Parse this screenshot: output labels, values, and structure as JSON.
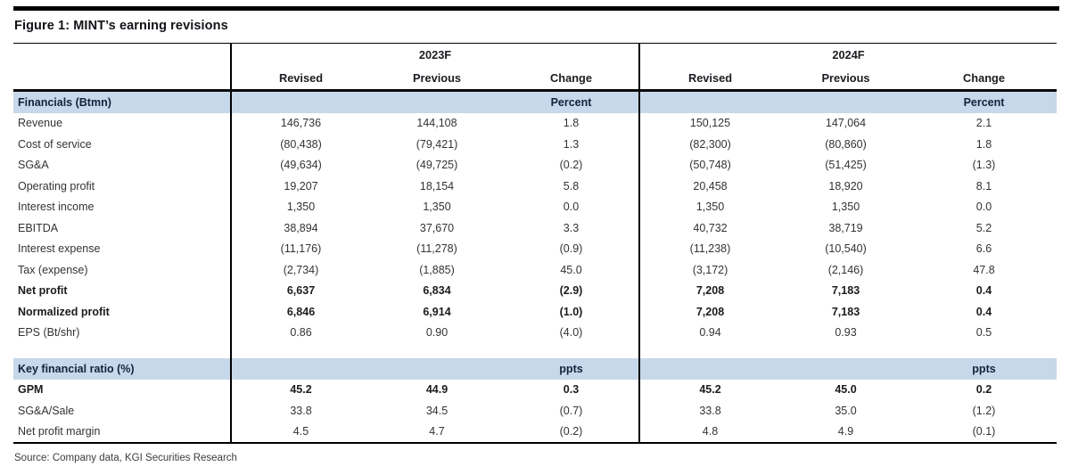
{
  "figure": {
    "title": "Figure 1: MINT’s earning revisions",
    "source": "Source: Company data, KGI Securities Research"
  },
  "colors": {
    "section_band": "#c7d8ea",
    "rule": "#000000",
    "section_text": "#14213d",
    "body_text": "#333333"
  },
  "table": {
    "groups": [
      {
        "label": "2023F"
      },
      {
        "label": "2024F"
      }
    ],
    "sub_headers": [
      "Revised",
      "Previous",
      "Change",
      "Revised",
      "Previous",
      "Change"
    ],
    "sections": [
      {
        "header": {
          "label": "Financials (Btmn)",
          "unit": "Percent"
        },
        "rows": [
          {
            "label": "Revenue",
            "bold": false,
            "values": [
              "146,736",
              "144,108",
              "1.8",
              "150,125",
              "147,064",
              "2.1"
            ]
          },
          {
            "label": "Cost of service",
            "bold": false,
            "values": [
              "(80,438)",
              "(79,421)",
              "1.3",
              "(82,300)",
              "(80,860)",
              "1.8"
            ]
          },
          {
            "label": "SG&A",
            "bold": false,
            "values": [
              "(49,634)",
              "(49,725)",
              "(0.2)",
              "(50,748)",
              "(51,425)",
              "(1.3)"
            ]
          },
          {
            "label": "Operating profit",
            "bold": false,
            "values": [
              "19,207",
              "18,154",
              "5.8",
              "20,458",
              "18,920",
              "8.1"
            ]
          },
          {
            "label": "Interest income",
            "bold": false,
            "values": [
              "1,350",
              "1,350",
              "0.0",
              "1,350",
              "1,350",
              "0.0"
            ]
          },
          {
            "label": "EBITDA",
            "bold": false,
            "values": [
              "38,894",
              "37,670",
              "3.3",
              "40,732",
              "38,719",
              "5.2"
            ]
          },
          {
            "label": "Interest expense",
            "bold": false,
            "values": [
              "(11,176)",
              "(11,278)",
              "(0.9)",
              "(11,238)",
              "(10,540)",
              "6.6"
            ]
          },
          {
            "label": "Tax (expense)",
            "bold": false,
            "values": [
              "(2,734)",
              "(1,885)",
              "45.0",
              "(3,172)",
              "(2,146)",
              "47.8"
            ]
          },
          {
            "label": "Net profit",
            "bold": true,
            "values": [
              "6,637",
              "6,834",
              "(2.9)",
              "7,208",
              "7,183",
              "0.4"
            ]
          },
          {
            "label": "Normalized profit",
            "bold": true,
            "values": [
              "6,846",
              "6,914",
              "(1.0)",
              "7,208",
              "7,183",
              "0.4"
            ]
          },
          {
            "label": "EPS (Bt/shr)",
            "bold": false,
            "values": [
              "0.86",
              "0.90",
              "(4.0)",
              "0.94",
              "0.93",
              "0.5"
            ]
          }
        ]
      },
      {
        "header": {
          "label": "Key financial ratio (%)",
          "unit": "ppts"
        },
        "rows": [
          {
            "label": "GPM",
            "bold": true,
            "values": [
              "45.2",
              "44.9",
              "0.3",
              "45.2",
              "45.0",
              "0.2"
            ]
          },
          {
            "label": "SG&A/Sale",
            "bold": false,
            "values": [
              "33.8",
              "34.5",
              "(0.7)",
              "33.8",
              "35.0",
              "(1.2)"
            ]
          },
          {
            "label": "Net profit margin",
            "bold": false,
            "values": [
              "4.5",
              "4.7",
              "(0.2)",
              "4.8",
              "4.9",
              "(0.1)"
            ]
          }
        ]
      }
    ]
  }
}
